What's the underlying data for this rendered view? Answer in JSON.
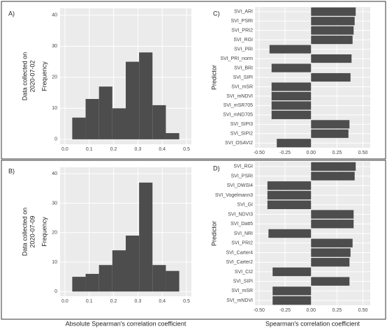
{
  "chart_data": [
    {
      "type": "histogram",
      "label": "A)",
      "annotation": [
        "Data collected on",
        "2020-07-02"
      ],
      "ylabel": "Frequency",
      "color": "#4d4d4d",
      "bins": [
        0.03,
        0.085,
        0.14,
        0.195,
        0.25,
        0.305,
        0.36,
        0.415,
        0.47
      ],
      "values": [
        7,
        13,
        17,
        10,
        25,
        28,
        11,
        2
      ],
      "xlim": [
        -0.02,
        0.52
      ],
      "xticks": [
        {
          "value": 0,
          "label": "0.0"
        },
        0.1,
        0.2,
        0.3,
        0.4,
        0.5
      ],
      "ylim": [
        -1.6,
        42.2
      ],
      "yticks": [
        0,
        10,
        20,
        30,
        40
      ],
      "grid": true
    },
    {
      "type": "bar",
      "orientation": "horizontal",
      "label": "C)",
      "ylabel": "Predictor",
      "color": "#4d4d4d",
      "categories": [
        "SVI_ARI",
        "SVI_PSRI",
        "SVI_PRI2",
        "SVI_RGI",
        "SVI_PRI",
        "SVI_PRI_norm",
        "SVI_BRI",
        "SVI_SIPI",
        "SVI_mSR",
        "SVI_mNDVI",
        "SVI_mSR705",
        "SVI_mND705",
        "SVI_SIPI3",
        "SVI_SIPI2",
        "SVI_OSAVI2"
      ],
      "values": [
        0.43,
        0.42,
        0.41,
        0.4,
        -0.4,
        0.39,
        -0.38,
        0.38,
        -0.38,
        -0.38,
        -0.38,
        -0.38,
        0.37,
        0.36,
        -0.33
      ],
      "xlim": [
        -0.54,
        0.57
      ],
      "xticks": [
        {
          "value": -0.5,
          "label": "-0.50"
        },
        -0.25,
        {
          "value": 0,
          "label": "0.00"
        },
        0.25,
        {
          "value": 0.5,
          "label": "0.50"
        }
      ],
      "grid": true
    },
    {
      "type": "histogram",
      "label": "B)",
      "annotation": [
        "Data collected on",
        "2020-07-09"
      ],
      "ylabel": "Frequency",
      "xlabel": "Absolute Spearman's correlation coefficient",
      "color": "#4d4d4d",
      "bins": [
        0.03,
        0.085,
        0.14,
        0.195,
        0.25,
        0.305,
        0.36,
        0.415,
        0.47
      ],
      "values": [
        5,
        6,
        9,
        14,
        19,
        37,
        9,
        7
      ],
      "xlim": [
        -0.02,
        0.52
      ],
      "xticks": [
        {
          "value": 0,
          "label": "0.0"
        },
        0.1,
        0.2,
        0.3,
        0.4,
        0.5
      ],
      "ylim": [
        -1.6,
        42.2
      ],
      "yticks": [
        0,
        10,
        20,
        30,
        40
      ],
      "grid": true
    },
    {
      "type": "bar",
      "orientation": "horizontal",
      "label": "D)",
      "ylabel": "Predictor",
      "xlabel": "Spearman's correlation coefficient",
      "color": "#4d4d4d",
      "categories": [
        "SVI_RGI",
        "SVI_PSRI",
        "SVI_DWSI4",
        "SVI_Vogelmann3",
        "SVI_GI",
        "SVI_NDVI3",
        "SVI_Datt5",
        "SVI_NRI",
        "SVI_PRI2",
        "SVI_Carter4",
        "SVI_Carter2",
        "SVI_CI2",
        "SVI_SIPI",
        "SVI_mSR",
        "SVI_mNDVI"
      ],
      "values": [
        0.43,
        0.42,
        -0.42,
        -0.42,
        -0.42,
        0.41,
        0.41,
        -0.41,
        0.4,
        0.38,
        0.37,
        -0.37,
        0.37,
        -0.37,
        -0.37
      ],
      "xlim": [
        -0.54,
        0.57
      ],
      "xticks": [
        {
          "value": -0.5,
          "label": "-0.50"
        },
        -0.25,
        {
          "value": 0,
          "label": "0.00"
        },
        0.25,
        {
          "value": 0.5,
          "label": "0.50"
        }
      ],
      "grid": true
    }
  ]
}
